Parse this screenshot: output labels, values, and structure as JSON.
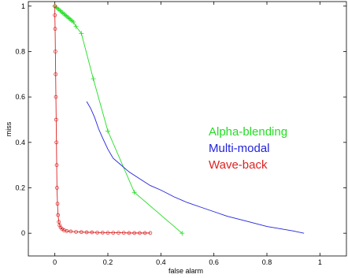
{
  "chart_data": {
    "type": "line",
    "xlabel": "false alarm",
    "ylabel": "miss",
    "xlim": [
      -0.1,
      1.1
    ],
    "ylim": [
      -0.1,
      1.02
    ],
    "xticks": [
      0,
      0.2,
      0.4,
      0.6,
      0.8,
      1
    ],
    "yticks": [
      0,
      0.2,
      0.4,
      0.6,
      0.8,
      1
    ],
    "xtick_labels": [
      "0",
      "0.2",
      "0.4",
      "0.6",
      "0.8",
      "1"
    ],
    "ytick_labels": [
      "0",
      "0.2",
      "0.4",
      "0.6",
      "0.8",
      "1"
    ],
    "grid": false,
    "legend_placement": "right-middle",
    "series": [
      {
        "name": "Alpha-blending",
        "color": "#22dd22",
        "marker": "plus",
        "x": [
          0.0,
          0.005,
          0.01,
          0.015,
          0.02,
          0.025,
          0.03,
          0.035,
          0.04,
          0.045,
          0.05,
          0.055,
          0.06,
          0.065,
          0.07,
          0.08,
          0.1,
          0.145,
          0.2,
          0.3,
          0.48
        ],
        "y": [
          1.0,
          0.995,
          0.99,
          0.985,
          0.98,
          0.975,
          0.97,
          0.965,
          0.96,
          0.955,
          0.95,
          0.945,
          0.94,
          0.935,
          0.93,
          0.91,
          0.88,
          0.68,
          0.45,
          0.18,
          0.0
        ]
      },
      {
        "name": "Multi-modal",
        "color": "#2222dd",
        "marker": "none",
        "x": [
          0.12,
          0.135,
          0.15,
          0.165,
          0.18,
          0.2,
          0.22,
          0.25,
          0.28,
          0.32,
          0.36,
          0.4,
          0.45,
          0.5,
          0.55,
          0.6,
          0.65,
          0.7,
          0.75,
          0.8,
          0.85,
          0.9,
          0.94
        ],
        "y": [
          0.58,
          0.55,
          0.51,
          0.46,
          0.42,
          0.37,
          0.33,
          0.3,
          0.27,
          0.24,
          0.21,
          0.19,
          0.16,
          0.135,
          0.115,
          0.095,
          0.075,
          0.06,
          0.045,
          0.03,
          0.02,
          0.01,
          0.0
        ]
      },
      {
        "name": "Wave-back",
        "color": "#dd2222",
        "marker": "circle",
        "x": [
          0.0,
          0.0,
          0.001,
          0.002,
          0.003,
          0.004,
          0.005,
          0.006,
          0.007,
          0.008,
          0.01,
          0.012,
          0.015,
          0.018,
          0.022,
          0.028,
          0.035,
          0.045,
          0.06,
          0.08,
          0.1,
          0.12,
          0.14,
          0.16,
          0.18,
          0.2,
          0.22,
          0.24,
          0.26,
          0.28,
          0.3,
          0.32,
          0.34,
          0.36
        ],
        "y": [
          1.0,
          0.96,
          0.9,
          0.8,
          0.7,
          0.6,
          0.5,
          0.4,
          0.3,
          0.2,
          0.13,
          0.08,
          0.05,
          0.035,
          0.025,
          0.018,
          0.013,
          0.01,
          0.008,
          0.006,
          0.005,
          0.004,
          0.004,
          0.003,
          0.003,
          0.002,
          0.002,
          0.002,
          0.002,
          0.001,
          0.001,
          0.001,
          0.001,
          0.001
        ]
      }
    ]
  }
}
